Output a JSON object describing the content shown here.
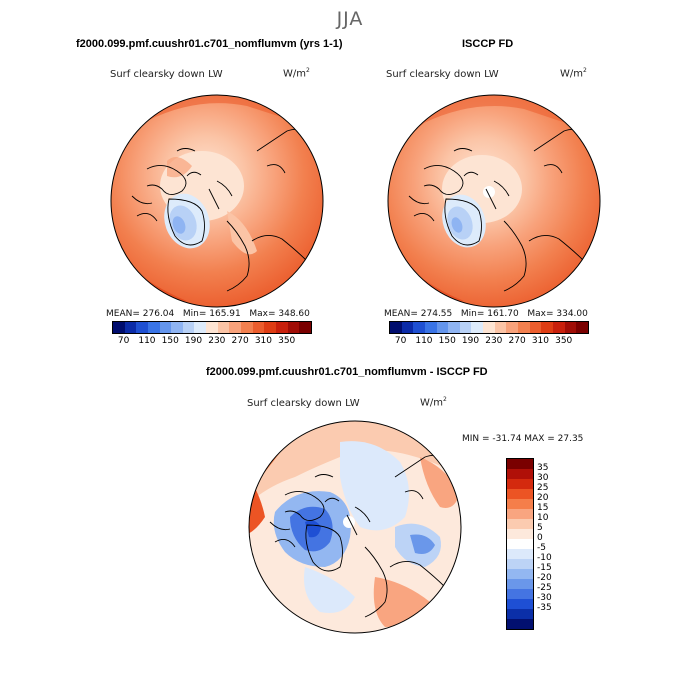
{
  "season": "JJA",
  "panels": {
    "model": {
      "title": "f2000.099.pmf.cuushr01.c701_nomflumvm (yrs 1-1)",
      "variable": "Surf clearsky down LW",
      "units": "W/m",
      "units_exp": "2",
      "mean_label": "MEAN=",
      "mean": "276.04",
      "min_label": "Min=",
      "min": "165.91",
      "max_label": "Max=",
      "max": "348.60"
    },
    "obs": {
      "title": "ISCCP FD",
      "variable": "Surf clearsky down LW",
      "units": "W/m",
      "units_exp": "2",
      "mean_label": "MEAN=",
      "mean": "274.55",
      "min_label": "Min=",
      "min": "161.70",
      "max_label": "Max=",
      "max": "334.00"
    },
    "diff": {
      "title": "f2000.099.pmf.cuushr01.c701_nomflumvm - ISCCP FD",
      "variable": "Surf clearsky down LW",
      "units": "W/m",
      "units_exp": "2",
      "minmax_label": "MIN = -31.74 MAX =  27.35"
    }
  },
  "colorbar_abs": {
    "colors": [
      "#000d6e",
      "#0b2ba8",
      "#1f50d2",
      "#3a74e6",
      "#6495ec",
      "#8fb4f2",
      "#b8d1f6",
      "#ddebfb",
      "#fde4d3",
      "#fbc4a6",
      "#f8a27b",
      "#f2804f",
      "#eb5d2d",
      "#de3d14",
      "#c8200c",
      "#a00d06",
      "#7a0000"
    ],
    "ticks": [
      "70",
      "110",
      "150",
      "190",
      "230",
      "270",
      "310",
      "350"
    ]
  },
  "colorbar_diff": {
    "colors": [
      "#7a0000",
      "#b01008",
      "#d42a0e",
      "#ec5424",
      "#f57e4a",
      "#f9a580",
      "#fbcbb0",
      "#fde9dc",
      "#ffffff",
      "#dce9fb",
      "#bcd3f6",
      "#93b7f1",
      "#6a97ea",
      "#4474e2",
      "#1e4fd4",
      "#0b2fa8",
      "#021070"
    ],
    "ticks": [
      "35",
      "30",
      "25",
      "20",
      "15",
      "10",
      "5",
      "0",
      "-5",
      "-10",
      "-15",
      "-20",
      "-25",
      "-30",
      "-35"
    ]
  }
}
